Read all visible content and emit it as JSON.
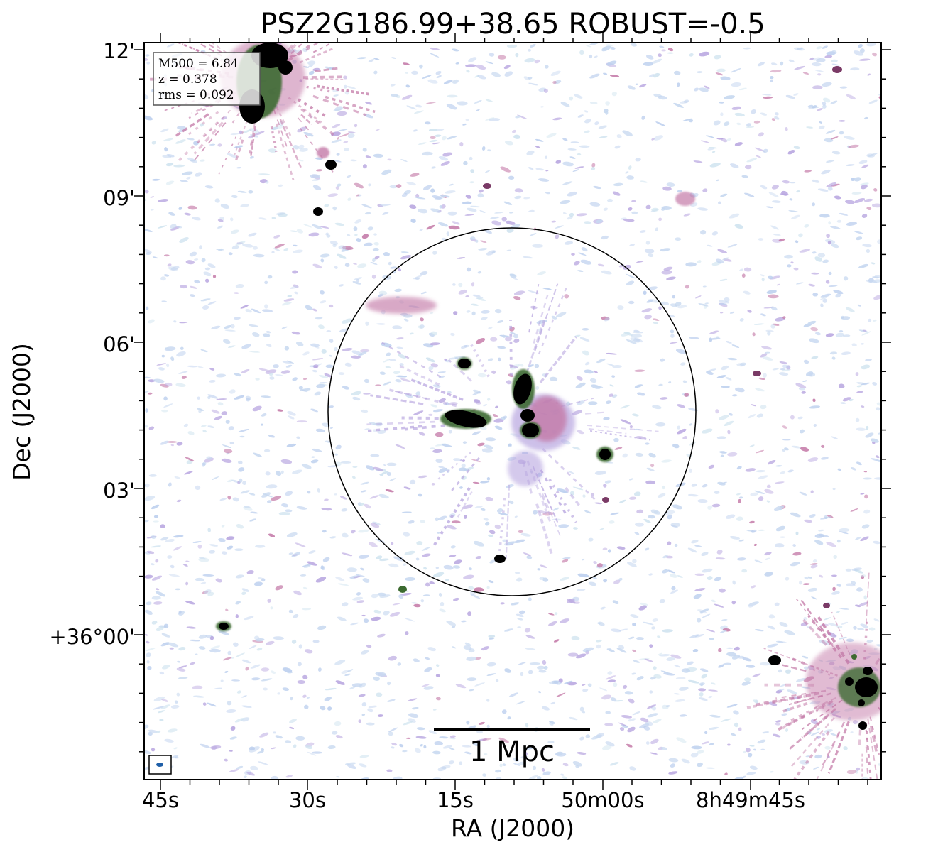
{
  "chart_data": {
    "type": "heatmap",
    "title": "PSZ2G186.99+38.65 ROBUST=-0.5",
    "xlabel": "RA (J2000)",
    "ylabel": "Dec (J2000)",
    "x_ticks": [
      "45s",
      "30s",
      "15s",
      "50m00s",
      "8h49m45s"
    ],
    "y_ticks": [
      "12'",
      "09'",
      "06'",
      "03'",
      "+36°00'"
    ],
    "info_box": {
      "mass": "M500 = 6.84",
      "redshift": "z = 0.378",
      "rms": "rms = 0.092"
    },
    "scalebar_label": "1 Mpc",
    "grid": false,
    "colormap": [
      "#ffffff",
      "#c7d8f0",
      "#b8a6e0",
      "#c47aa8",
      "#7a3a66",
      "#3c6a30",
      "#000000"
    ]
  }
}
